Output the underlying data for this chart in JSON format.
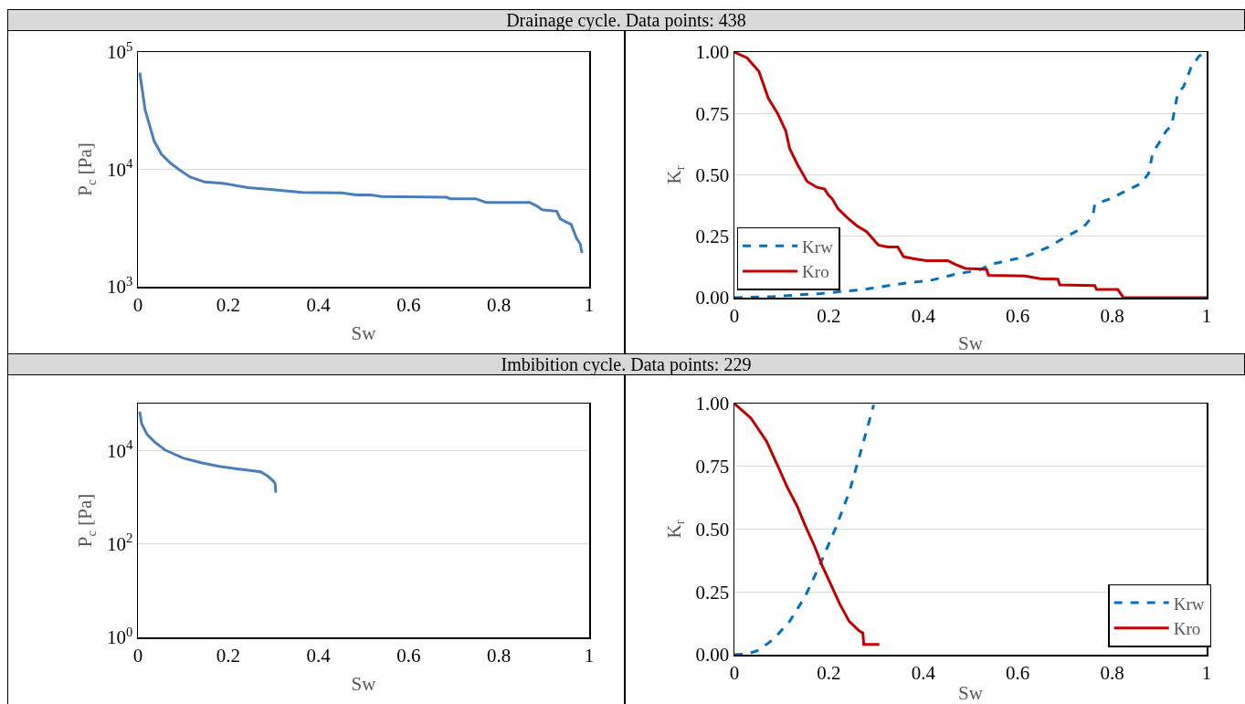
{
  "chart_data": [
    {
      "type": "line",
      "title": "Drainage cycle. Data points: 438",
      "xlabel": "Sw",
      "ylabel": "P$_{c}$ [Pa]",
      "log": "y",
      "grid": "y",
      "legend": false,
      "marker": "none",
      "xlim": [
        0,
        1
      ],
      "xticks": [
        0,
        0.2,
        0.4,
        0.6,
        0.8,
        1
      ],
      "ylim": [
        1000,
        100000
      ],
      "yticks": [
        {
          "value": 1000,
          "label": "10$^{3}$"
        },
        {
          "value": 10000,
          "label": "10$^{4}$"
        },
        {
          "value": 100000,
          "label": "10$^{5}$"
        }
      ],
      "series": [
        {
          "color": "#4a7ebb",
          "line_style": "solid",
          "x": [
            0.004,
            0.016,
            0.036,
            0.052,
            0.072,
            0.092,
            0.116,
            0.148,
            0.188,
            0.244,
            0.3,
            0.364,
            0.452,
            0.484,
            0.516,
            0.54,
            0.684,
            0.692,
            0.748,
            0.772,
            0.868,
            0.884,
            0.896,
            0.928,
            0.936,
            0.948,
            0.96,
            0.972,
            0.98,
            0.984
          ],
          "values": [
            66800,
            32100,
            17400,
            13500,
            11300,
            9900,
            8600,
            7800,
            7600,
            7000,
            6700,
            6350,
            6300,
            6050,
            6050,
            5870,
            5790,
            5620,
            5620,
            5230,
            5230,
            4870,
            4530,
            4400,
            3790,
            3570,
            3400,
            2590,
            2320,
            1940
          ]
        }
      ]
    },
    {
      "type": "line",
      "xlabel": "Sw",
      "ylabel": "K$_{r}$",
      "grid": "y",
      "legend": "bottom left",
      "marker": "none",
      "xlim": [
        0,
        1
      ],
      "xticks": [
        0,
        0.2,
        0.4,
        0.6,
        0.8,
        1
      ],
      "ylim": [
        0,
        1
      ],
      "yticks": [
        {
          "value": 0,
          "label": "0.00"
        },
        {
          "value": 0.25,
          "label": "0.25"
        },
        {
          "value": 0.5,
          "label": "0.50"
        },
        {
          "value": 0.75,
          "label": "0.75"
        },
        {
          "value": 1,
          "label": "1.00"
        }
      ],
      "series": [
        {
          "name": "Krw",
          "color": "#0070c0",
          "line_style": "dashed",
          "x": [
            0,
            0.084,
            0.182,
            0.272,
            0.354,
            0.419,
            0.469,
            0.518,
            0.542,
            0.616,
            0.665,
            0.697,
            0.738,
            0.759,
            0.763,
            0.796,
            0.82,
            0.861,
            0.877,
            0.886,
            0.902,
            0.914,
            0.926,
            0.939,
            0.951,
            0.967,
            0.984,
            1
          ],
          "values": [
            0,
            0.005,
            0.017,
            0.033,
            0.057,
            0.072,
            0.096,
            0.112,
            0.135,
            0.167,
            0.206,
            0.242,
            0.285,
            0.332,
            0.379,
            0.403,
            0.426,
            0.465,
            0.505,
            0.591,
            0.638,
            0.678,
            0.702,
            0.835,
            0.858,
            0.937,
            0.984,
            1
          ]
        },
        {
          "name": "Kro",
          "color": "#c00000",
          "line_style": "solid",
          "x": [
            0,
            0.027,
            0.052,
            0.072,
            0.092,
            0.109,
            0.117,
            0.133,
            0.154,
            0.174,
            0.191,
            0.199,
            0.207,
            0.219,
            0.24,
            0.26,
            0.28,
            0.305,
            0.325,
            0.346,
            0.358,
            0.379,
            0.407,
            0.452,
            0.468,
            0.489,
            0.534,
            0.538,
            0.616,
            0.648,
            0.685,
            0.689,
            0.763,
            0.767,
            0.812,
            0.824,
            1
          ],
          "values": [
            1,
            0.976,
            0.921,
            0.811,
            0.748,
            0.678,
            0.607,
            0.544,
            0.473,
            0.45,
            0.442,
            0.418,
            0.403,
            0.363,
            0.324,
            0.292,
            0.269,
            0.214,
            0.206,
            0.206,
            0.167,
            0.159,
            0.151,
            0.151,
            0.135,
            0.119,
            0.115,
            0.091,
            0.088,
            0.077,
            0.075,
            0.052,
            0.049,
            0.033,
            0.033,
            0,
            0
          ]
        }
      ]
    },
    {
      "type": "line",
      "title": "Imbibition cycle. Data points: 229",
      "xlabel": "Sw",
      "ylabel": "P$_{c}$ [Pa]",
      "log": "y",
      "grid": "y",
      "legend": false,
      "marker": "none",
      "xlim": [
        0,
        1
      ],
      "xticks": [
        0,
        0.2,
        0.4,
        0.6,
        0.8,
        1
      ],
      "ylim": [
        1,
        100000
      ],
      "yticks": [
        {
          "value": 1,
          "label": "10$^{0}$"
        },
        {
          "value": 100,
          "label": "10$^{2}$"
        },
        {
          "value": 10000,
          "label": "10$^{4}$"
        }
      ],
      "series": [
        {
          "color": "#4a7ebb",
          "line_style": "solid",
          "x": [
            0.004,
            0.008,
            0.02,
            0.036,
            0.06,
            0.1,
            0.14,
            0.18,
            0.22,
            0.272,
            0.288,
            0.3,
            0.304,
            0.3056
          ],
          "values": [
            67300,
            37800,
            22100,
            15400,
            10200,
            6850,
            5420,
            4530,
            4000,
            3460,
            2790,
            2210,
            1950,
            1240
          ]
        }
      ]
    },
    {
      "type": "line",
      "xlabel": "Sw",
      "ylabel": "K$_{r}$",
      "grid": "y",
      "legend": "bottom right",
      "marker": "none",
      "xlim": [
        0,
        1
      ],
      "xticks": [
        0,
        0.2,
        0.4,
        0.6,
        0.8,
        1
      ],
      "ylim": [
        0,
        1
      ],
      "yticks": [
        {
          "value": 0,
          "label": "0.00"
        },
        {
          "value": 0.25,
          "label": "0.25"
        },
        {
          "value": 0.5,
          "label": "0.50"
        },
        {
          "value": 0.75,
          "label": "0.75"
        },
        {
          "value": 1,
          "label": "1.00"
        }
      ],
      "series": [
        {
          "name": "Krw",
          "color": "#0070c0",
          "line_style": "dashed",
          "x": [
            0,
            0.027,
            0.052,
            0.084,
            0.117,
            0.15,
            0.182,
            0.215,
            0.244,
            0.268,
            0.285,
            0.295
          ],
          "values": [
            0,
            0.003,
            0.018,
            0.064,
            0.133,
            0.232,
            0.362,
            0.507,
            0.652,
            0.812,
            0.927,
            0.995
          ]
        },
        {
          "name": "Kro",
          "color": "#c00000",
          "line_style": "solid",
          "x": [
            0,
            0.035,
            0.068,
            0.092,
            0.112,
            0.133,
            0.15,
            0.17,
            0.186,
            0.203,
            0.223,
            0.243,
            0.264,
            0.272,
            0.274,
            0.307
          ],
          "values": [
            1,
            0.942,
            0.85,
            0.751,
            0.667,
            0.591,
            0.514,
            0.431,
            0.354,
            0.285,
            0.202,
            0.133,
            0.095,
            0.087,
            0.041,
            0.041
          ]
        }
      ]
    }
  ]
}
